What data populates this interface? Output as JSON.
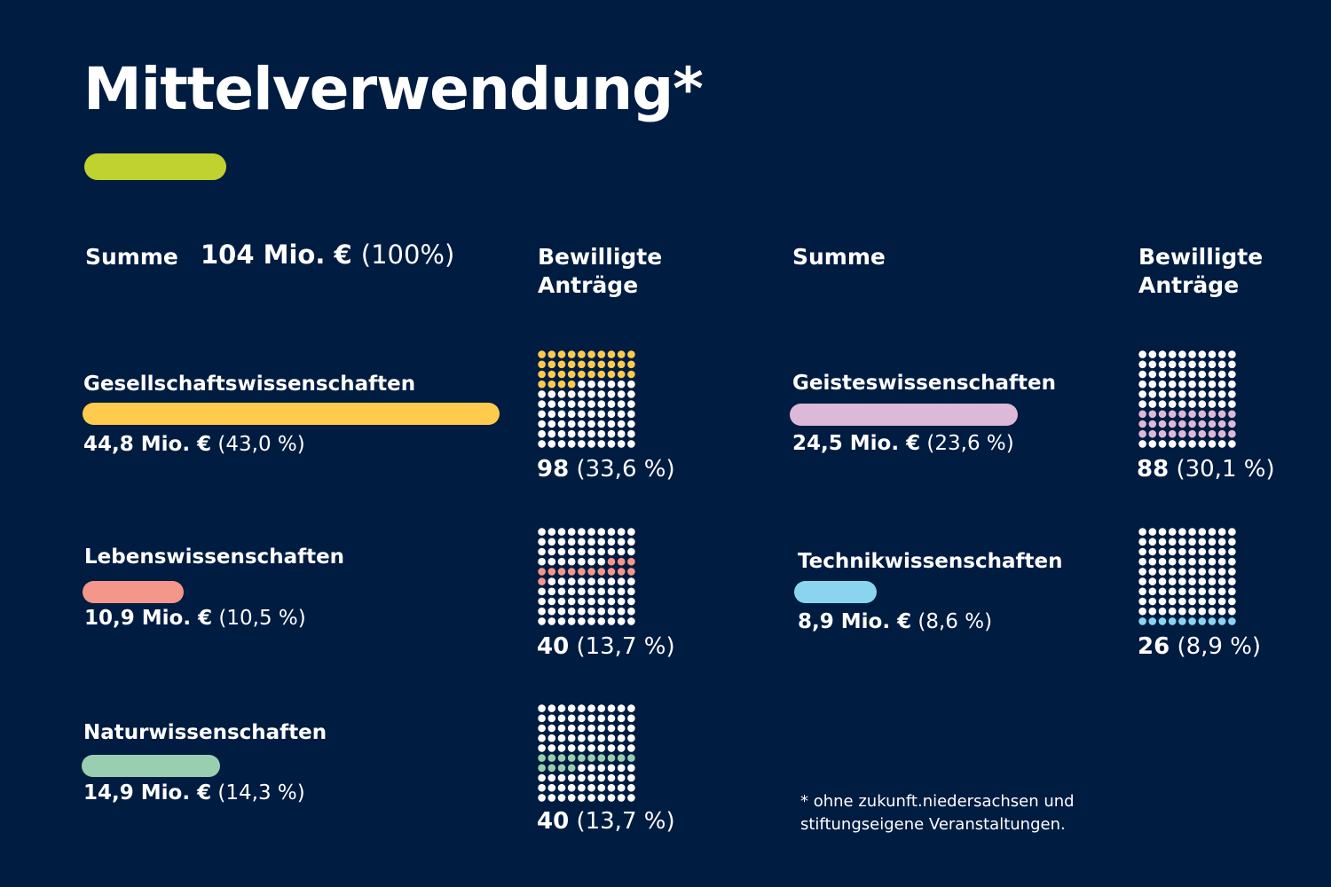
{
  "title": "Mittelverwendung*",
  "colors": {
    "background": "#001c41",
    "accent": "#c0d22f",
    "dot_empty": "#ffffff"
  },
  "headers": {
    "left_summe": "Summe",
    "total_amount": "104 Mio. €",
    "total_pct": "(100%)",
    "left_antraege": "Bewilligte\nAnträge",
    "right_summe": "Summe",
    "right_antraege": "Bewilligte\nAnträge"
  },
  "footnote": "* ohne zukunft.niedersachsen und\n   stiftungseigene Veranstaltungen.",
  "chart_data": {
    "type": "bar",
    "total": {
      "amount_mio_eur": 104,
      "pct": 100
    },
    "categories": [
      "Gesellschaftswissenschaften",
      "Lebenswissenschaften",
      "Naturwissenschaften",
      "Geisteswissenschaften",
      "Technikwissenschaften"
    ],
    "series": [
      {
        "name": "Summe",
        "values": [
          44.8,
          10.9,
          14.9,
          24.5,
          8.9
        ],
        "pct": [
          43.0,
          10.5,
          14.3,
          23.6,
          8.6
        ]
      },
      {
        "name": "Bewilligte Anträge",
        "values": [
          98,
          40,
          40,
          88,
          26
        ],
        "pct": [
          33.6,
          13.7,
          13.7,
          30.1,
          8.9
        ]
      }
    ],
    "colors": [
      "#ffcb4c",
      "#f5968a",
      "#99cfb0",
      "#dcb9d9",
      "#8ad4ef"
    ],
    "amount_labels": [
      {
        "amount": "44,8 Mio. €",
        "pct": "(43,0 %)"
      },
      {
        "amount": "10,9 Mio. €",
        "pct": "(10,5 %)"
      },
      {
        "amount": "14,9 Mio. €",
        "pct": "(14,3 %)"
      },
      {
        "amount": "24,5 Mio. €",
        "pct": "(23,6 %)"
      },
      {
        "amount": "8,9 Mio. €",
        "pct": "(8,6 %)"
      }
    ],
    "count_labels": [
      {
        "count": "98",
        "pct": "(33,6 %)"
      },
      {
        "count": "40",
        "pct": "(13,7 %)"
      },
      {
        "count": "40",
        "pct": "(13,7 %)"
      },
      {
        "count": "88",
        "pct": "(30,1 %)"
      },
      {
        "count": "26",
        "pct": "(8,9 %)"
      }
    ],
    "dot_grids": [
      {
        "filled_start_dot": 0,
        "filled_dots": 34
      },
      {
        "filled_start_dot": 37,
        "filled_dots": 14
      },
      {
        "filled_start_dot": 50,
        "filled_dots": 14
      },
      {
        "filled_start_dot": 60,
        "filled_dots": 30
      },
      {
        "filled_start_dot": 90,
        "filled_dots": 10
      }
    ],
    "dot_grid_size": [
      10,
      10
    ],
    "bar_scale_max": 44.8
  }
}
